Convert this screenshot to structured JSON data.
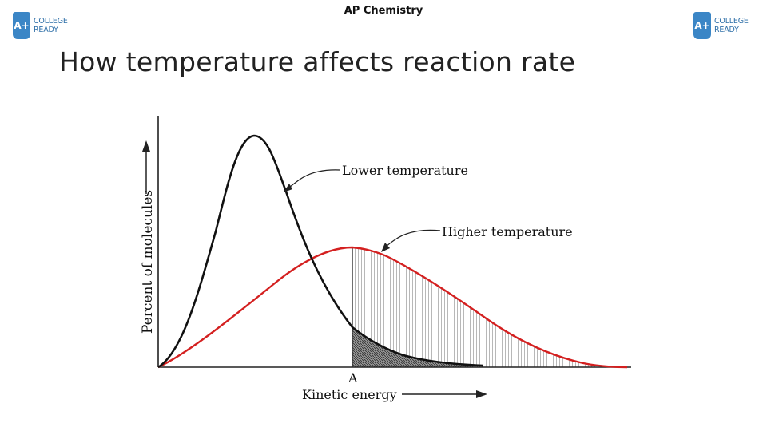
{
  "header": {
    "course": "AP Chemistry"
  },
  "slide": {
    "title": "How temperature affects reaction rate"
  },
  "logo": {
    "mark": "A+",
    "line1": "COLLEGE",
    "line2": "READY",
    "color": "#3b86c6"
  },
  "diagram": {
    "y_axis_label": "Percent of molecules",
    "x_axis_label": "Kinetic energy",
    "threshold_label": "A",
    "curves": [
      {
        "name": "Lower temperature",
        "color": "#111111"
      },
      {
        "name": "Higher temperature",
        "color": "#d42020"
      }
    ]
  }
}
